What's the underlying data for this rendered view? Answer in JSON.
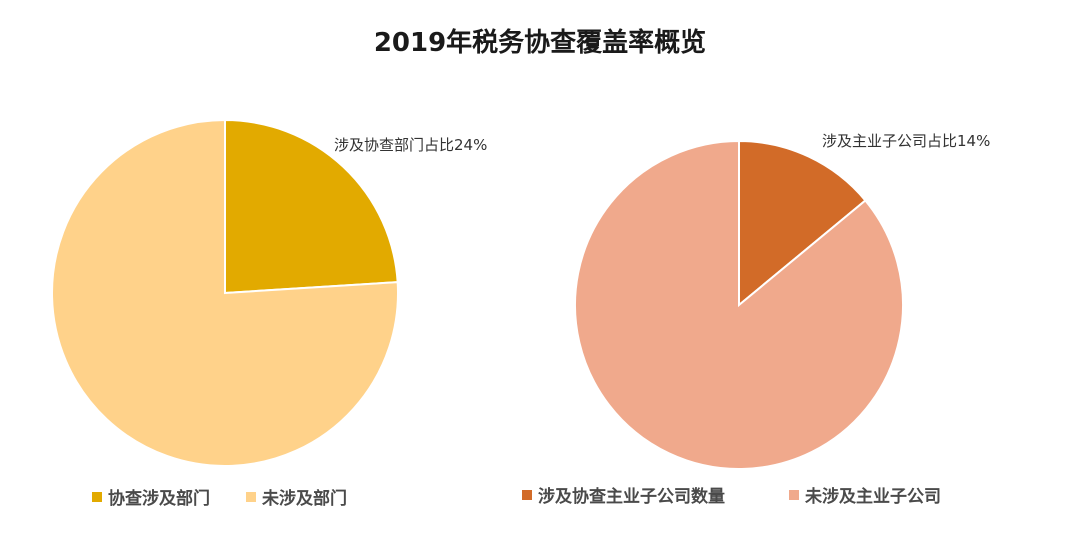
{
  "title": "2019年税务协查覆盖率概览",
  "chart_data": [
    {
      "type": "pie",
      "slices": [
        {
          "label": "协查涉及部门",
          "value": 24,
          "color": "#E2AA00"
        },
        {
          "label": "未涉及部门",
          "value": 76,
          "color": "#FFD28A"
        }
      ],
      "annotation": "涉及协查部门占比24%",
      "legend": "bottom"
    },
    {
      "type": "pie",
      "slices": [
        {
          "label": "涉及协查主业子公司数量",
          "value": 14,
          "color": "#D26B28"
        },
        {
          "label": "未涉及主业子公司",
          "value": 86,
          "color": "#F0A98C"
        }
      ],
      "annotation": "涉及主业子公司占比14%",
      "legend": "bottom"
    }
  ]
}
